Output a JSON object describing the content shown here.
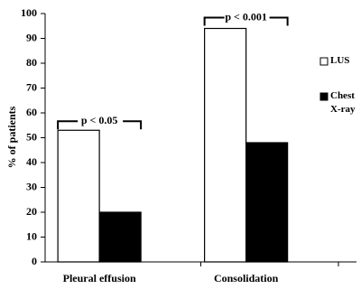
{
  "chart_data": {
    "type": "bar",
    "ylabel": "% of patients",
    "categories": [
      "Pleural effusion",
      "Consolidation"
    ],
    "series": [
      {
        "name": "LUS",
        "color": "#ffffff",
        "values": [
          53,
          94
        ]
      },
      {
        "name": "Chest X-ray",
        "color": "#000000",
        "values": [
          20,
          48
        ]
      }
    ],
    "ylim": [
      0,
      100
    ],
    "yticks": [
      0,
      10,
      20,
      30,
      40,
      50,
      60,
      70,
      80,
      90,
      100
    ],
    "annotations": [
      "p < 0.05",
      "p < 0.001"
    ]
  }
}
